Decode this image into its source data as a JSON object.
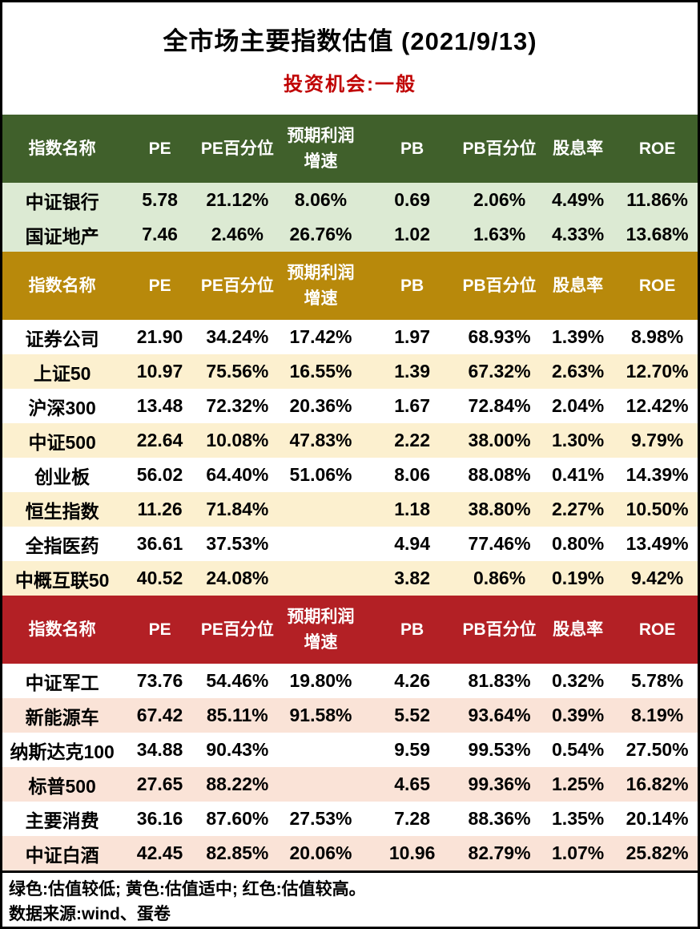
{
  "title": "全市场主要指数估值 (2021/9/13)",
  "subtitle": "投资机会:一般",
  "subtitle_color": "#c00000",
  "footer": {
    "legend": "绿色:估值较低; 黄色:估值适中; 红色:估值较高。",
    "source": "数据来源:wind、蛋卷"
  },
  "chart_data": {
    "type": "table",
    "title": "全市场主要指数估值 (2021/9/13)",
    "columns": [
      "指数名称",
      "PE",
      "PE百分位",
      "预期利润\n增速",
      "PB",
      "PB百分位",
      "股息率",
      "ROE"
    ],
    "sections": [
      {
        "id": "green",
        "header_bg": "#40602b",
        "row_bg": "#dcead3",
        "tint": "all",
        "rows": [
          [
            "中证银行",
            "5.78",
            "21.12%",
            "8.06%",
            "0.69",
            "2.06%",
            "4.49%",
            "11.86%"
          ],
          [
            "国证地产",
            "7.46",
            "2.46%",
            "26.76%",
            "1.02",
            "1.63%",
            "4.33%",
            "13.68%"
          ]
        ]
      },
      {
        "id": "yellow",
        "header_bg": "#b8890b",
        "row_bg": "#fcf0cf",
        "tint": "alternate",
        "rows": [
          [
            "证券公司",
            "21.90",
            "34.24%",
            "17.42%",
            "1.97",
            "68.93%",
            "1.39%",
            "8.98%"
          ],
          [
            "上证50",
            "10.97",
            "75.56%",
            "16.55%",
            "1.39",
            "67.32%",
            "2.63%",
            "12.70%"
          ],
          [
            "沪深300",
            "13.48",
            "72.32%",
            "20.36%",
            "1.67",
            "72.84%",
            "2.04%",
            "12.42%"
          ],
          [
            "中证500",
            "22.64",
            "10.08%",
            "47.83%",
            "2.22",
            "38.00%",
            "1.30%",
            "9.79%"
          ],
          [
            "创业板",
            "56.02",
            "64.40%",
            "51.06%",
            "8.06",
            "88.08%",
            "0.41%",
            "14.39%"
          ],
          [
            "恒生指数",
            "11.26",
            "71.84%",
            "",
            "1.18",
            "38.80%",
            "2.27%",
            "10.50%"
          ],
          [
            "全指医药",
            "36.61",
            "37.53%",
            "",
            "4.94",
            "77.46%",
            "0.80%",
            "13.49%"
          ],
          [
            "中概互联50",
            "40.52",
            "24.08%",
            "",
            "3.82",
            "0.86%",
            "0.19%",
            "9.42%"
          ]
        ]
      },
      {
        "id": "red",
        "header_bg": "#b32025",
        "row_bg": "#fae3d7",
        "tint": "alternate",
        "rows": [
          [
            "中证军工",
            "73.76",
            "54.46%",
            "19.80%",
            "4.26",
            "81.83%",
            "0.32%",
            "5.78%"
          ],
          [
            "新能源车",
            "67.42",
            "85.11%",
            "91.58%",
            "5.52",
            "93.64%",
            "0.39%",
            "8.19%"
          ],
          [
            "纳斯达克100",
            "34.88",
            "90.43%",
            "",
            "9.59",
            "99.53%",
            "0.54%",
            "27.50%"
          ],
          [
            "标普500",
            "27.65",
            "88.22%",
            "",
            "4.65",
            "99.36%",
            "1.25%",
            "16.82%"
          ],
          [
            "主要消费",
            "36.16",
            "87.60%",
            "27.53%",
            "7.28",
            "88.36%",
            "1.35%",
            "20.14%"
          ],
          [
            "中证白酒",
            "42.45",
            "82.85%",
            "20.06%",
            "10.96",
            "82.79%",
            "1.07%",
            "25.82%"
          ]
        ]
      }
    ]
  }
}
